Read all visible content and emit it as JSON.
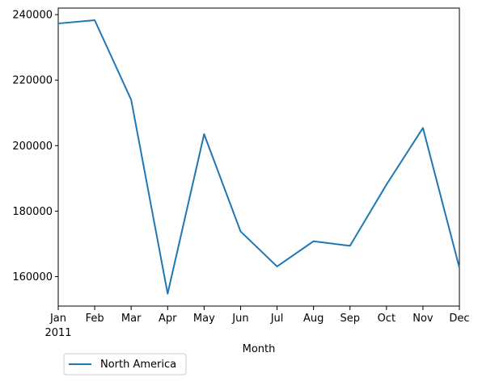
{
  "chart_data": {
    "type": "line",
    "title": "",
    "xlabel": "Month",
    "ylabel": "",
    "categories": [
      "Jan",
      "Feb",
      "Mar",
      "Apr",
      "May",
      "Jun",
      "Jul",
      "Aug",
      "Sep",
      "Oct",
      "Nov",
      "Dec"
    ],
    "x_sublabel": "2011",
    "ylim": [
      151000,
      242000
    ],
    "yticks": [
      160000,
      180000,
      200000,
      220000,
      240000
    ],
    "ytick_labels": [
      "160000",
      "180000",
      "200000",
      "220000",
      "240000"
    ],
    "series": [
      {
        "name": "North America",
        "color": "#1f77b4",
        "values": [
          237300,
          238300,
          214000,
          154800,
          203500,
          173800,
          163100,
          170800,
          169400,
          188100,
          205400,
          162700
        ]
      }
    ],
    "grid": false,
    "legend_position": "lower-left, below plot"
  }
}
